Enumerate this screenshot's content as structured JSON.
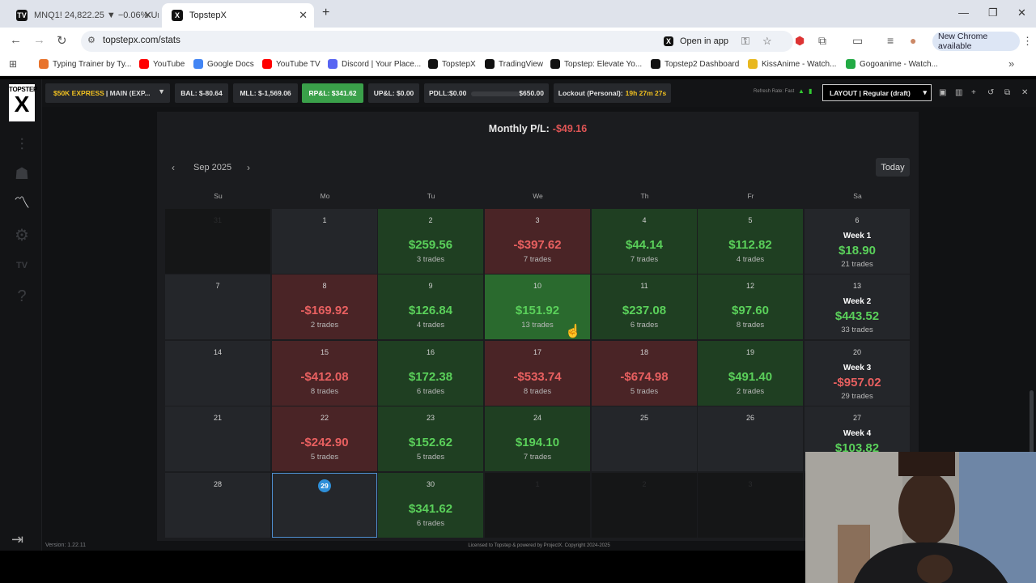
{
  "browser": {
    "tabs": [
      {
        "title": "MNQ1! 24,822.25 ▼ −0.06% Un",
        "icon": "tradingview-icon"
      },
      {
        "title": "TopstepX",
        "icon": "topstepx-icon"
      }
    ],
    "url": "topstepx.com/stats",
    "open_in_app": "Open in app",
    "new_chrome": "New Chrome available",
    "bookmarks": [
      {
        "label": "Typing Trainer by Ty...",
        "color": "#e8732c"
      },
      {
        "label": "YouTube",
        "color": "#ff0000"
      },
      {
        "label": "Google Docs",
        "color": "#4285f4"
      },
      {
        "label": "YouTube TV",
        "color": "#ff0000"
      },
      {
        "label": "Discord | Your Place...",
        "color": "#5865f2"
      },
      {
        "label": "TopstepX",
        "color": "#111111"
      },
      {
        "label": "TradingView",
        "color": "#111111"
      },
      {
        "label": "Topstep: Elevate Yo...",
        "color": "#111111"
      },
      {
        "label": "Topstep2 Dashboard",
        "color": "#111111"
      },
      {
        "label": "KissAnime - Watch...",
        "color": "#e8b820"
      },
      {
        "label": "Gogoanime - Watch...",
        "color": "#22aa44"
      }
    ]
  },
  "sidebar": {
    "logo_top": "TOPSTEP",
    "logo_mark": "X",
    "version": "Version: 1.22.11"
  },
  "topbar": {
    "account_name": "$50K EXPRESS",
    "account_rest": "| MAIN (EXP...",
    "bal": "BAL: $-80.64",
    "mll": "MLL: $-1,569.06",
    "rpl": "RP&L: $341.62",
    "upl": "UP&L: $0.00",
    "pdll": "PDLL:$0.00",
    "pdll_limit": "$650.00",
    "lockout_label": "Lockout (Personal):",
    "lockout_time": "19h 27m 27s",
    "refresh_rate": "Refresh Rate: Fast",
    "layout": "LAYOUT | Regular (draft)"
  },
  "calendar": {
    "monthly_label": "Monthly P/L:",
    "monthly_value": "-$49.16",
    "month": "Sep 2025",
    "today_button": "Today",
    "weekdays": [
      "Su",
      "Mo",
      "Tu",
      "We",
      "Th",
      "Fr",
      "Sa"
    ],
    "weeks": [
      [
        {
          "day": "31",
          "state": "outside"
        },
        {
          "day": "1",
          "state": "empty"
        },
        {
          "day": "2",
          "state": "win",
          "amount": "$259.56",
          "trades": "3 trades"
        },
        {
          "day": "3",
          "state": "loss",
          "amount": "-$397.62",
          "trades": "7 trades"
        },
        {
          "day": "4",
          "state": "win",
          "amount": "$44.14",
          "trades": "7 trades"
        },
        {
          "day": "5",
          "state": "win",
          "amount": "$112.82",
          "trades": "4 trades"
        },
        {
          "day": "6",
          "state": "week",
          "week": "Week 1",
          "amount": "$18.90",
          "sign": "pos",
          "trades": "21 trades"
        }
      ],
      [
        {
          "day": "7",
          "state": "empty"
        },
        {
          "day": "8",
          "state": "loss",
          "amount": "-$169.92",
          "trades": "2 trades"
        },
        {
          "day": "9",
          "state": "win",
          "amount": "$126.84",
          "trades": "4 trades"
        },
        {
          "day": "10",
          "state": "win bright",
          "amount": "$151.92",
          "trades": "13 trades"
        },
        {
          "day": "11",
          "state": "win",
          "amount": "$237.08",
          "trades": "6 trades"
        },
        {
          "day": "12",
          "state": "win",
          "amount": "$97.60",
          "trades": "8 trades"
        },
        {
          "day": "13",
          "state": "week",
          "week": "Week 2",
          "amount": "$443.52",
          "sign": "pos",
          "trades": "33 trades"
        }
      ],
      [
        {
          "day": "14",
          "state": "empty"
        },
        {
          "day": "15",
          "state": "loss",
          "amount": "-$412.08",
          "trades": "8 trades"
        },
        {
          "day": "16",
          "state": "win",
          "amount": "$172.38",
          "trades": "6 trades"
        },
        {
          "day": "17",
          "state": "loss",
          "amount": "-$533.74",
          "trades": "8 trades"
        },
        {
          "day": "18",
          "state": "loss",
          "amount": "-$674.98",
          "trades": "5 trades"
        },
        {
          "day": "19",
          "state": "win",
          "amount": "$491.40",
          "trades": "2 trades"
        },
        {
          "day": "20",
          "state": "week",
          "week": "Week 3",
          "amount": "-$957.02",
          "sign": "neg",
          "trades": "29 trades"
        }
      ],
      [
        {
          "day": "21",
          "state": "empty"
        },
        {
          "day": "22",
          "state": "loss",
          "amount": "-$242.90",
          "trades": "5 trades"
        },
        {
          "day": "23",
          "state": "win",
          "amount": "$152.62",
          "trades": "5 trades"
        },
        {
          "day": "24",
          "state": "win",
          "amount": "$194.10",
          "trades": "7 trades"
        },
        {
          "day": "25",
          "state": "empty"
        },
        {
          "day": "26",
          "state": "empty"
        },
        {
          "day": "27",
          "state": "week",
          "week": "Week 4",
          "amount": "$103.82",
          "sign": "pos",
          "trades": ""
        }
      ],
      [
        {
          "day": "28",
          "state": "empty"
        },
        {
          "day": "29",
          "state": "today"
        },
        {
          "day": "30",
          "state": "win",
          "amount": "$341.62",
          "trades": "6 trades"
        },
        {
          "day": "1",
          "state": "outside"
        },
        {
          "day": "2",
          "state": "outside"
        },
        {
          "day": "3",
          "state": "outside"
        },
        {
          "day": "",
          "state": "outside"
        }
      ]
    ]
  },
  "footer": "Licensed to Topstep & powered by ProjectX. Copyright 2024-2025"
}
